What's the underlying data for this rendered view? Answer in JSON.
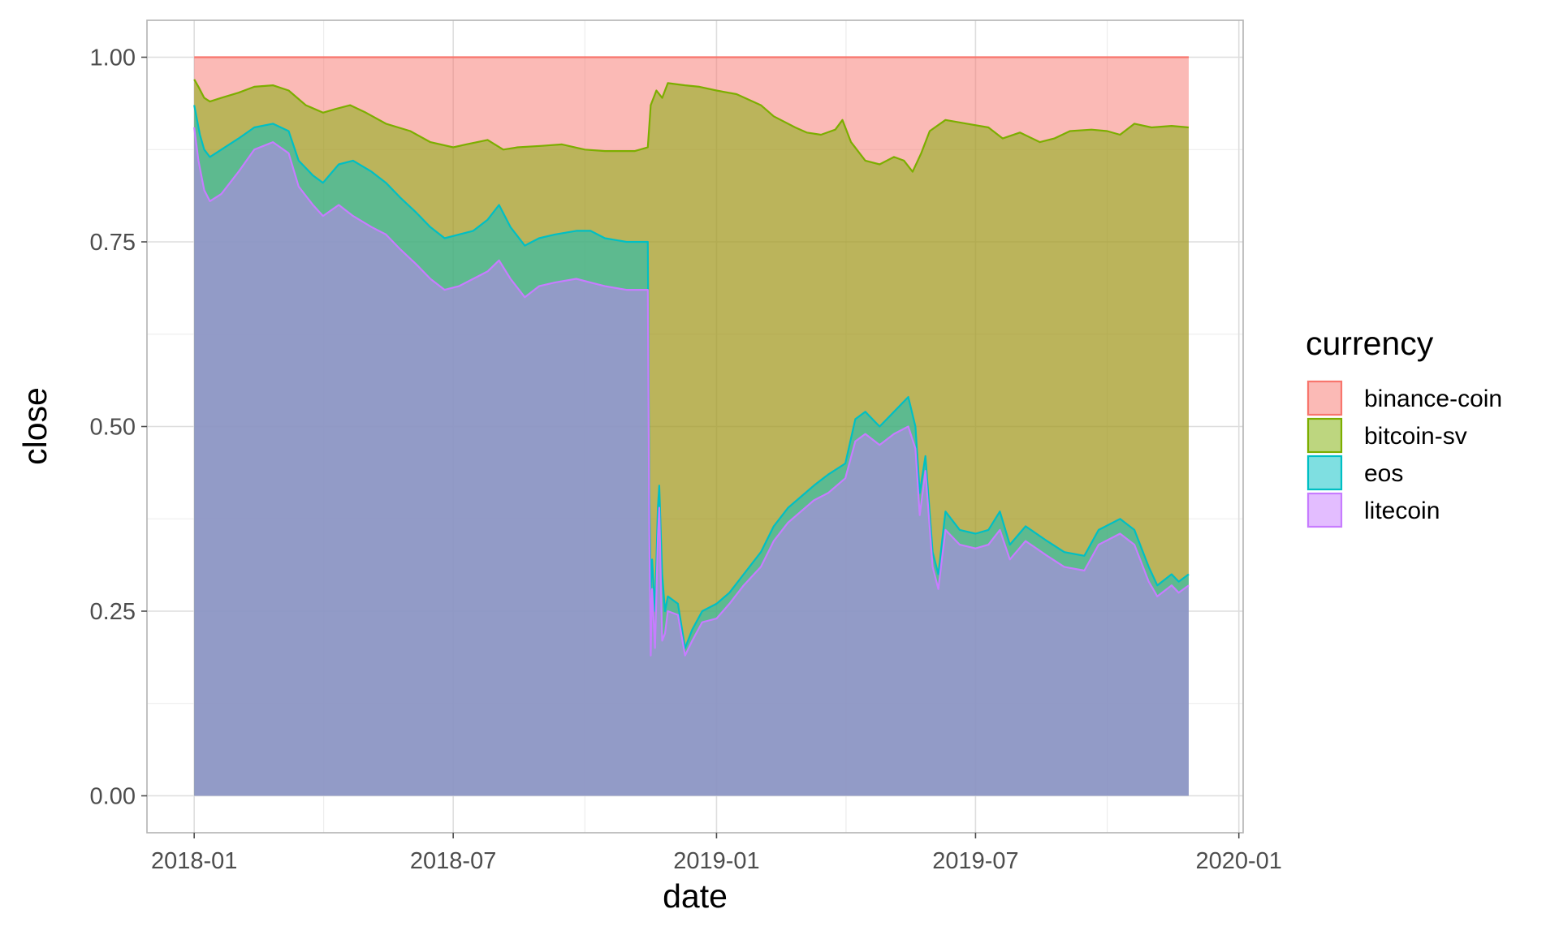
{
  "chart_data": {
    "type": "area",
    "stacked": true,
    "normalized": true,
    "xlabel": "date",
    "ylabel": "close",
    "xlim": [
      "2017-11-29",
      "2020-01-04"
    ],
    "ylim": [
      -0.05,
      1.05
    ],
    "xticks": [
      {
        "label": "2018-01",
        "date": "2018-01-01"
      },
      {
        "label": "2018-07",
        "date": "2018-07-01"
      },
      {
        "label": "2019-01",
        "date": "2019-01-01"
      },
      {
        "label": "2019-07",
        "date": "2019-07-01"
      },
      {
        "label": "2020-01",
        "date": "2020-01-01"
      }
    ],
    "yticks": [
      {
        "label": "0.00",
        "value": 0
      },
      {
        "label": "0.25",
        "value": 0.25
      },
      {
        "label": "0.50",
        "value": 0.5
      },
      {
        "label": "0.75",
        "value": 0.75
      },
      {
        "label": "1.00",
        "value": 1
      }
    ],
    "grid": true,
    "legend_position": "right",
    "legend_title": "currency",
    "series": [
      {
        "name": "binance-coin",
        "line_color": "#F8766D",
        "fill_color": "#F8766D",
        "points": [
          [
            "2018-01-01",
            1
          ],
          [
            "2019-11-27",
            1
          ]
        ]
      },
      {
        "name": "bitcoin-sv",
        "line_color": "#7CAE00",
        "fill_color": "#7CAE00",
        "points": [
          [
            "2018-01-01",
            0.97
          ],
          [
            "2018-01-04",
            0.96
          ],
          [
            "2018-01-08",
            0.945
          ],
          [
            "2018-01-12",
            0.94
          ],
          [
            "2018-01-20",
            0.945
          ],
          [
            "2018-02-01",
            0.952
          ],
          [
            "2018-02-12",
            0.96
          ],
          [
            "2018-02-25",
            0.962
          ],
          [
            "2018-03-08",
            0.955
          ],
          [
            "2018-03-20",
            0.935
          ],
          [
            "2018-04-01",
            0.925
          ],
          [
            "2018-04-10",
            0.93
          ],
          [
            "2018-04-20",
            0.935
          ],
          [
            "2018-05-01",
            0.925
          ],
          [
            "2018-05-15",
            0.91
          ],
          [
            "2018-06-01",
            0.9
          ],
          [
            "2018-06-15",
            0.885
          ],
          [
            "2018-07-01",
            0.878
          ],
          [
            "2018-07-10",
            0.882
          ],
          [
            "2018-07-25",
            0.888
          ],
          [
            "2018-08-05",
            0.875
          ],
          [
            "2018-08-15",
            0.878
          ],
          [
            "2018-09-01",
            0.88
          ],
          [
            "2018-09-15",
            0.882
          ],
          [
            "2018-10-01",
            0.875
          ],
          [
            "2018-10-15",
            0.873
          ],
          [
            "2018-11-05",
            0.873
          ],
          [
            "2018-11-14",
            0.878
          ],
          [
            "2018-11-16",
            0.935
          ],
          [
            "2018-11-20",
            0.955
          ],
          [
            "2018-11-24",
            0.945
          ],
          [
            "2018-11-28",
            0.965
          ],
          [
            "2018-12-10",
            0.962
          ],
          [
            "2018-12-20",
            0.96
          ],
          [
            "2019-01-01",
            0.955
          ],
          [
            "2019-01-15",
            0.95
          ],
          [
            "2019-02-01",
            0.935
          ],
          [
            "2019-02-10",
            0.92
          ],
          [
            "2019-02-25",
            0.905
          ],
          [
            "2019-03-05",
            0.898
          ],
          [
            "2019-03-15",
            0.895
          ],
          [
            "2019-03-25",
            0.902
          ],
          [
            "2019-03-30",
            0.915
          ],
          [
            "2019-04-05",
            0.885
          ],
          [
            "2019-04-15",
            0.86
          ],
          [
            "2019-04-25",
            0.855
          ],
          [
            "2019-05-05",
            0.865
          ],
          [
            "2019-05-12",
            0.86
          ],
          [
            "2019-05-18",
            0.845
          ],
          [
            "2019-05-24",
            0.87
          ],
          [
            "2019-05-30",
            0.9
          ],
          [
            "2019-06-10",
            0.915
          ],
          [
            "2019-06-25",
            0.91
          ],
          [
            "2019-07-10",
            0.905
          ],
          [
            "2019-07-20",
            0.89
          ],
          [
            "2019-08-01",
            0.898
          ],
          [
            "2019-08-15",
            0.885
          ],
          [
            "2019-08-25",
            0.89
          ],
          [
            "2019-09-05",
            0.9
          ],
          [
            "2019-09-20",
            0.902
          ],
          [
            "2019-10-01",
            0.9
          ],
          [
            "2019-10-10",
            0.895
          ],
          [
            "2019-10-20",
            0.91
          ],
          [
            "2019-11-01",
            0.905
          ],
          [
            "2019-11-15",
            0.907
          ],
          [
            "2019-11-27",
            0.905
          ]
        ]
      },
      {
        "name": "eos",
        "line_color": "#00BFC4",
        "fill_color": "#00BFC4",
        "points": [
          [
            "2018-01-01",
            0.935
          ],
          [
            "2018-01-05",
            0.895
          ],
          [
            "2018-01-08",
            0.875
          ],
          [
            "2018-01-12",
            0.865
          ],
          [
            "2018-01-20",
            0.875
          ],
          [
            "2018-02-01",
            0.89
          ],
          [
            "2018-02-12",
            0.905
          ],
          [
            "2018-02-25",
            0.91
          ],
          [
            "2018-03-08",
            0.9
          ],
          [
            "2018-03-15",
            0.86
          ],
          [
            "2018-03-25",
            0.84
          ],
          [
            "2018-04-01",
            0.83
          ],
          [
            "2018-04-12",
            0.855
          ],
          [
            "2018-04-22",
            0.86
          ],
          [
            "2018-05-05",
            0.845
          ],
          [
            "2018-05-15",
            0.83
          ],
          [
            "2018-05-25",
            0.81
          ],
          [
            "2018-06-05",
            0.79
          ],
          [
            "2018-06-15",
            0.77
          ],
          [
            "2018-06-25",
            0.755
          ],
          [
            "2018-07-05",
            0.76
          ],
          [
            "2018-07-15",
            0.765
          ],
          [
            "2018-07-25",
            0.78
          ],
          [
            "2018-08-02",
            0.8
          ],
          [
            "2018-08-10",
            0.77
          ],
          [
            "2018-08-20",
            0.745
          ],
          [
            "2018-08-30",
            0.755
          ],
          [
            "2018-09-10",
            0.76
          ],
          [
            "2018-09-25",
            0.765
          ],
          [
            "2018-10-05",
            0.765
          ],
          [
            "2018-10-15",
            0.755
          ],
          [
            "2018-10-30",
            0.75
          ],
          [
            "2018-11-14",
            0.75
          ],
          [
            "2018-11-15",
            0.42
          ],
          [
            "2018-11-16",
            0.28
          ],
          [
            "2018-11-17",
            0.32
          ],
          [
            "2018-11-19",
            0.25
          ],
          [
            "2018-11-21",
            0.39
          ],
          [
            "2018-11-22",
            0.42
          ],
          [
            "2018-11-24",
            0.3
          ],
          [
            "2018-11-26",
            0.25
          ],
          [
            "2018-11-28",
            0.27
          ],
          [
            "2018-12-05",
            0.26
          ],
          [
            "2018-12-10",
            0.2
          ],
          [
            "2018-12-15",
            0.225
          ],
          [
            "2018-12-22",
            0.25
          ],
          [
            "2019-01-01",
            0.26
          ],
          [
            "2019-01-10",
            0.275
          ],
          [
            "2019-01-20",
            0.3
          ],
          [
            "2019-02-01",
            0.33
          ],
          [
            "2019-02-10",
            0.365
          ],
          [
            "2019-02-20",
            0.39
          ],
          [
            "2019-03-01",
            0.405
          ],
          [
            "2019-03-10",
            0.42
          ],
          [
            "2019-03-20",
            0.435
          ],
          [
            "2019-04-01",
            0.45
          ],
          [
            "2019-04-08",
            0.51
          ],
          [
            "2019-04-15",
            0.52
          ],
          [
            "2019-04-25",
            0.5
          ],
          [
            "2019-05-05",
            0.52
          ],
          [
            "2019-05-15",
            0.54
          ],
          [
            "2019-05-20",
            0.5
          ],
          [
            "2019-05-23",
            0.41
          ],
          [
            "2019-05-27",
            0.46
          ],
          [
            "2019-06-01",
            0.33
          ],
          [
            "2019-06-05",
            0.3
          ],
          [
            "2019-06-10",
            0.385
          ],
          [
            "2019-06-20",
            0.36
          ],
          [
            "2019-07-01",
            0.355
          ],
          [
            "2019-07-10",
            0.36
          ],
          [
            "2019-07-18",
            0.385
          ],
          [
            "2019-07-25",
            0.34
          ],
          [
            "2019-08-05",
            0.365
          ],
          [
            "2019-08-20",
            0.345
          ],
          [
            "2019-09-01",
            0.33
          ],
          [
            "2019-09-15",
            0.325
          ],
          [
            "2019-09-25",
            0.36
          ],
          [
            "2019-10-10",
            0.375
          ],
          [
            "2019-10-20",
            0.36
          ],
          [
            "2019-10-30",
            0.31
          ],
          [
            "2019-11-05",
            0.285
          ],
          [
            "2019-11-15",
            0.3
          ],
          [
            "2019-11-20",
            0.29
          ],
          [
            "2019-11-27",
            0.3
          ]
        ]
      },
      {
        "name": "litecoin",
        "line_color": "#C77CFF",
        "fill_color": "#C77CFF",
        "points": [
          [
            "2018-01-01",
            0.905
          ],
          [
            "2018-01-04",
            0.86
          ],
          [
            "2018-01-08",
            0.82
          ],
          [
            "2018-01-12",
            0.805
          ],
          [
            "2018-01-20",
            0.815
          ],
          [
            "2018-02-01",
            0.845
          ],
          [
            "2018-02-12",
            0.875
          ],
          [
            "2018-02-25",
            0.885
          ],
          [
            "2018-03-08",
            0.87
          ],
          [
            "2018-03-15",
            0.825
          ],
          [
            "2018-03-25",
            0.8
          ],
          [
            "2018-04-01",
            0.785
          ],
          [
            "2018-04-12",
            0.8
          ],
          [
            "2018-04-22",
            0.785
          ],
          [
            "2018-05-05",
            0.77
          ],
          [
            "2018-05-15",
            0.76
          ],
          [
            "2018-05-25",
            0.74
          ],
          [
            "2018-06-05",
            0.72
          ],
          [
            "2018-06-15",
            0.7
          ],
          [
            "2018-06-25",
            0.685
          ],
          [
            "2018-07-05",
            0.69
          ],
          [
            "2018-07-15",
            0.7
          ],
          [
            "2018-07-25",
            0.71
          ],
          [
            "2018-08-02",
            0.725
          ],
          [
            "2018-08-10",
            0.7
          ],
          [
            "2018-08-20",
            0.675
          ],
          [
            "2018-08-30",
            0.69
          ],
          [
            "2018-09-10",
            0.695
          ],
          [
            "2018-09-25",
            0.7
          ],
          [
            "2018-10-05",
            0.695
          ],
          [
            "2018-10-15",
            0.69
          ],
          [
            "2018-10-30",
            0.685
          ],
          [
            "2018-11-14",
            0.685
          ],
          [
            "2018-11-15",
            0.36
          ],
          [
            "2018-11-16",
            0.19
          ],
          [
            "2018-11-17",
            0.28
          ],
          [
            "2018-11-19",
            0.2
          ],
          [
            "2018-11-21",
            0.35
          ],
          [
            "2018-11-22",
            0.39
          ],
          [
            "2018-11-24",
            0.21
          ],
          [
            "2018-11-26",
            0.22
          ],
          [
            "2018-11-28",
            0.25
          ],
          [
            "2018-12-05",
            0.245
          ],
          [
            "2018-12-10",
            0.19
          ],
          [
            "2018-12-15",
            0.21
          ],
          [
            "2018-12-22",
            0.235
          ],
          [
            "2019-01-01",
            0.24
          ],
          [
            "2019-01-10",
            0.26
          ],
          [
            "2019-01-20",
            0.285
          ],
          [
            "2019-02-01",
            0.31
          ],
          [
            "2019-02-10",
            0.345
          ],
          [
            "2019-02-20",
            0.37
          ],
          [
            "2019-03-01",
            0.385
          ],
          [
            "2019-03-10",
            0.4
          ],
          [
            "2019-03-20",
            0.41
          ],
          [
            "2019-04-01",
            0.43
          ],
          [
            "2019-04-08",
            0.48
          ],
          [
            "2019-04-15",
            0.49
          ],
          [
            "2019-04-25",
            0.475
          ],
          [
            "2019-05-05",
            0.49
          ],
          [
            "2019-05-15",
            0.5
          ],
          [
            "2019-05-20",
            0.47
          ],
          [
            "2019-05-23",
            0.38
          ],
          [
            "2019-05-27",
            0.44
          ],
          [
            "2019-06-01",
            0.31
          ],
          [
            "2019-06-05",
            0.28
          ],
          [
            "2019-06-10",
            0.36
          ],
          [
            "2019-06-20",
            0.34
          ],
          [
            "2019-07-01",
            0.335
          ],
          [
            "2019-07-10",
            0.34
          ],
          [
            "2019-07-18",
            0.36
          ],
          [
            "2019-07-25",
            0.32
          ],
          [
            "2019-08-05",
            0.345
          ],
          [
            "2019-08-20",
            0.325
          ],
          [
            "2019-09-01",
            0.31
          ],
          [
            "2019-09-15",
            0.305
          ],
          [
            "2019-09-25",
            0.34
          ],
          [
            "2019-10-10",
            0.355
          ],
          [
            "2019-10-20",
            0.34
          ],
          [
            "2019-10-30",
            0.29
          ],
          [
            "2019-11-05",
            0.27
          ],
          [
            "2019-11-15",
            0.285
          ],
          [
            "2019-11-20",
            0.275
          ],
          [
            "2019-11-27",
            0.285
          ]
        ]
      }
    ]
  }
}
